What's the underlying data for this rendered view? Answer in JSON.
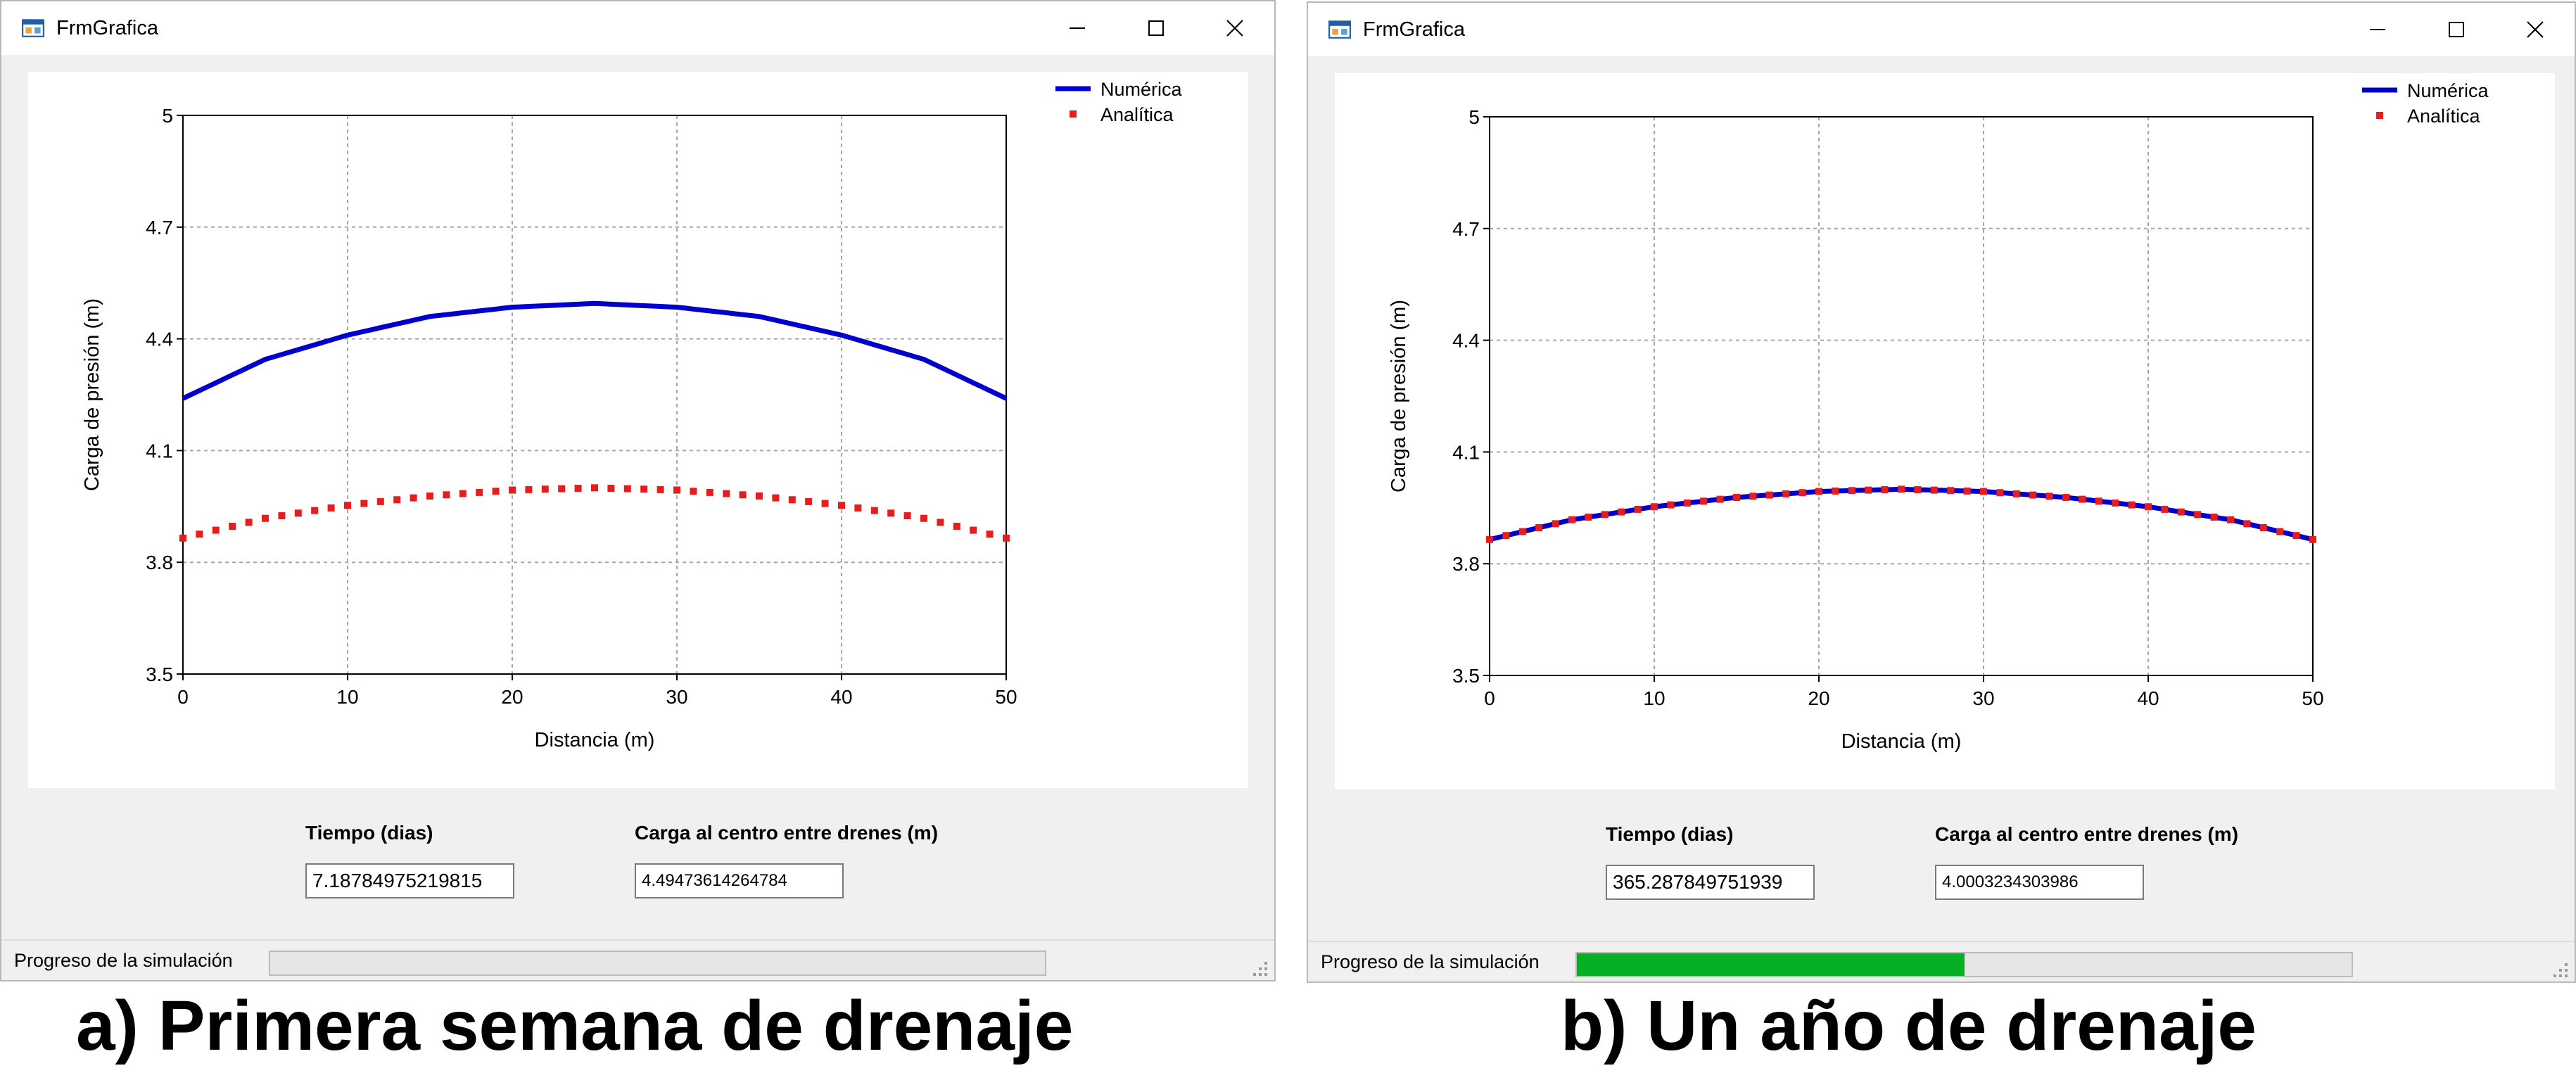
{
  "panels": [
    {
      "window_title": "FrmGrafica",
      "chart_data": {
        "type": "line",
        "title": "",
        "xlabel": "Distancia (m)",
        "ylabel": "Carga de presión (m)",
        "xlim": [
          0,
          50
        ],
        "ylim": [
          3.5,
          5
        ],
        "x_ticks": [
          0,
          10,
          20,
          30,
          40,
          50
        ],
        "y_ticks": [
          3.5,
          3.8,
          4.1,
          4.4,
          4.7,
          5
        ],
        "grid": true,
        "legend_position": "top-right",
        "series": [
          {
            "name": "Numérica",
            "style": "line",
            "color": "#0000cc",
            "x": [
              0,
              5,
              10,
              15,
              20,
              25,
              30,
              35,
              40,
              45,
              50
            ],
            "y": [
              4.24,
              4.345,
              4.41,
              4.46,
              4.485,
              4.495,
              4.485,
              4.46,
              4.41,
              4.345,
              4.24
            ]
          },
          {
            "name": "Analítica",
            "style": "markers",
            "color": "#e81c1c",
            "x": [
              0,
              5,
              10,
              15,
              20,
              25,
              30,
              35,
              40,
              45,
              50
            ],
            "y": [
              3.865,
              3.918,
              3.953,
              3.978,
              3.994,
              4.0,
              3.994,
              3.978,
              3.953,
              3.918,
              3.865
            ]
          }
        ]
      },
      "fields": {
        "time_label": "Tiempo (dias)",
        "time_value": "7.18784975219815",
        "center_label": "Carga al centro entre drenes (m)",
        "center_value": "4.49473614264784"
      },
      "status": {
        "label": "Progreso de la simulación",
        "progress": 0.0
      },
      "caption": "a) Primera semana de drenaje"
    },
    {
      "window_title": "FrmGrafica",
      "chart_data": {
        "type": "line",
        "title": "",
        "xlabel": "Distancia (m)",
        "ylabel": "Carga de presión (m)",
        "xlim": [
          0,
          50
        ],
        "ylim": [
          3.5,
          5
        ],
        "x_ticks": [
          0,
          10,
          20,
          30,
          40,
          50
        ],
        "y_ticks": [
          3.5,
          3.8,
          4.1,
          4.4,
          4.7,
          5
        ],
        "grid": true,
        "legend_position": "top-right",
        "series": [
          {
            "name": "Numérica",
            "style": "line",
            "color": "#0000cc",
            "x": [
              0,
              5,
              10,
              15,
              20,
              25,
              30,
              35,
              40,
              45,
              50
            ],
            "y": [
              3.865,
              3.918,
              3.953,
              3.978,
              3.994,
              4.0,
              3.994,
              3.978,
              3.953,
              3.918,
              3.865
            ]
          },
          {
            "name": "Analítica",
            "style": "markers",
            "color": "#e81c1c",
            "x": [
              0,
              5,
              10,
              15,
              20,
              25,
              30,
              35,
              40,
              45,
              50
            ],
            "y": [
              3.865,
              3.918,
              3.953,
              3.978,
              3.994,
              4.0,
              3.994,
              3.978,
              3.953,
              3.918,
              3.865
            ]
          }
        ]
      },
      "fields": {
        "time_label": "Tiempo (dias)",
        "time_value": "365.287849751939",
        "center_label": "Carga al centro entre drenes (m)",
        "center_value": "4.0003234303986"
      },
      "status": {
        "label": "Progreso de la simulación",
        "progress": 0.5
      },
      "caption": "b) Un año de drenaje"
    }
  ],
  "icons": {
    "app": "form-app-icon",
    "minimize": "minimize-icon",
    "maximize": "maximize-icon",
    "close": "close-icon",
    "grip": "size-grip-icon"
  }
}
